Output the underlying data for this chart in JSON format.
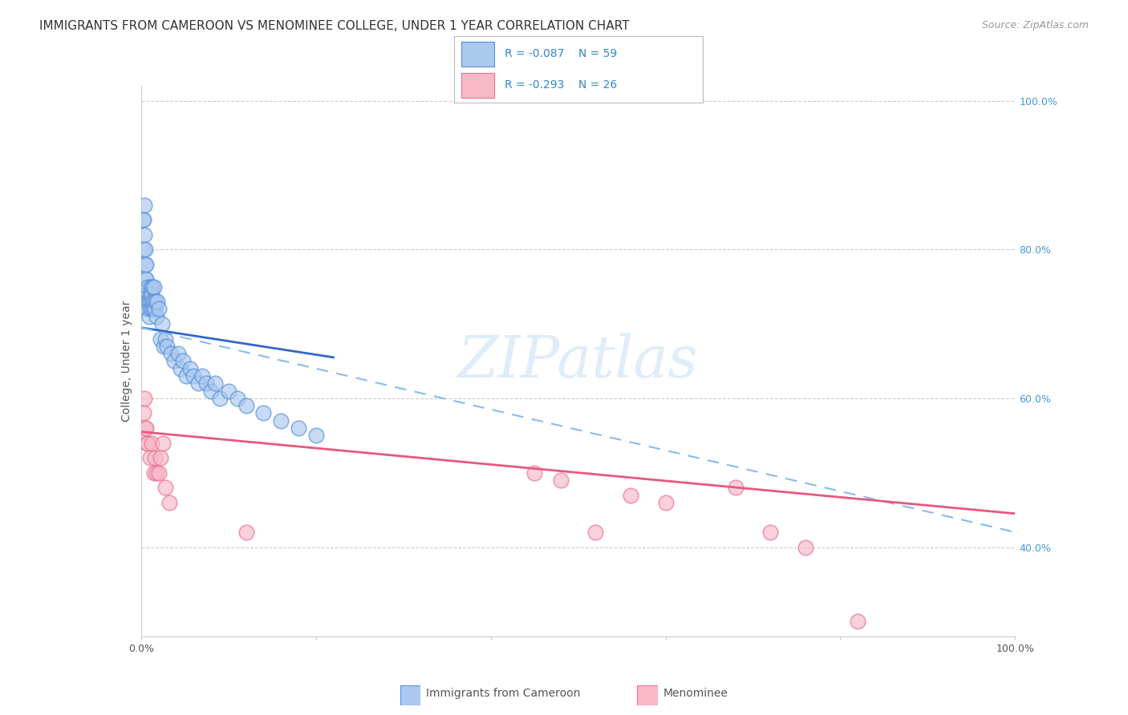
{
  "title": "IMMIGRANTS FROM CAMEROON VS MENOMINEE COLLEGE, UNDER 1 YEAR CORRELATION CHART",
  "source": "Source: ZipAtlas.com",
  "ylabel": "College, Under 1 year",
  "legend_label1": "Immigrants from Cameroon",
  "legend_label2": "Menominee",
  "R1": -0.087,
  "N1": 59,
  "R2": -0.293,
  "N2": 26,
  "blue_face_color": "#aac8f0",
  "blue_edge_color": "#5590d8",
  "pink_face_color": "#f8b8c8",
  "pink_edge_color": "#e87090",
  "blue_line_color": "#3366cc",
  "pink_line_color": "#e85880",
  "dashed_line_color": "#88bbee",
  "right_axis_color": "#4499dd",
  "legend_text_color": "#3388cc",
  "blue_x": [
    0.002,
    0.003,
    0.003,
    0.004,
    0.004,
    0.005,
    0.005,
    0.005,
    0.006,
    0.006,
    0.006,
    0.007,
    0.007,
    0.008,
    0.008,
    0.009,
    0.009,
    0.01,
    0.01,
    0.011,
    0.011,
    0.012,
    0.012,
    0.013,
    0.013,
    0.014,
    0.015,
    0.015,
    0.016,
    0.017,
    0.018,
    0.019,
    0.02,
    0.022,
    0.024,
    0.026,
    0.028,
    0.03,
    0.034,
    0.038,
    0.042,
    0.045,
    0.048,
    0.052,
    0.056,
    0.06,
    0.065,
    0.07,
    0.075,
    0.08,
    0.085,
    0.09,
    0.1,
    0.11,
    0.12,
    0.14,
    0.16,
    0.18,
    0.2
  ],
  "blue_y": [
    0.84,
    0.84,
    0.8,
    0.86,
    0.82,
    0.76,
    0.78,
    0.8,
    0.74,
    0.76,
    0.78,
    0.72,
    0.74,
    0.73,
    0.75,
    0.71,
    0.73,
    0.72,
    0.74,
    0.73,
    0.75,
    0.72,
    0.74,
    0.73,
    0.75,
    0.72,
    0.73,
    0.75,
    0.72,
    0.73,
    0.71,
    0.73,
    0.72,
    0.68,
    0.7,
    0.67,
    0.68,
    0.67,
    0.66,
    0.65,
    0.66,
    0.64,
    0.65,
    0.63,
    0.64,
    0.63,
    0.62,
    0.63,
    0.62,
    0.61,
    0.62,
    0.6,
    0.61,
    0.6,
    0.59,
    0.58,
    0.57,
    0.56,
    0.55
  ],
  "pink_x": [
    0.003,
    0.004,
    0.005,
    0.006,
    0.007,
    0.008,
    0.01,
    0.012,
    0.015,
    0.016,
    0.018,
    0.02,
    0.022,
    0.025,
    0.028,
    0.032,
    0.12,
    0.45,
    0.48,
    0.52,
    0.56,
    0.6,
    0.68,
    0.72,
    0.76,
    0.82
  ],
  "pink_y": [
    0.58,
    0.6,
    0.56,
    0.56,
    0.54,
    0.54,
    0.52,
    0.54,
    0.5,
    0.52,
    0.5,
    0.5,
    0.52,
    0.54,
    0.48,
    0.46,
    0.42,
    0.5,
    0.49,
    0.42,
    0.47,
    0.46,
    0.48,
    0.42,
    0.4,
    0.3
  ],
  "blue_line_x0": 0.0,
  "blue_line_x1": 0.22,
  "blue_line_y0": 0.695,
  "blue_line_y1": 0.655,
  "dash_line_x0": 0.0,
  "dash_line_x1": 1.0,
  "dash_line_y0": 0.695,
  "dash_line_y1": 0.42,
  "pink_line_x0": 0.0,
  "pink_line_x1": 1.0,
  "pink_line_y0": 0.555,
  "pink_line_y1": 0.445,
  "xlim": [
    0.0,
    1.0
  ],
  "ylim": [
    0.28,
    1.02
  ],
  "right_yticks": [
    0.4,
    0.6,
    0.8,
    1.0
  ],
  "right_yticklabels": [
    "40.0%",
    "60.0%",
    "80.0%",
    "100.0%"
  ],
  "title_fontsize": 11,
  "source_fontsize": 9,
  "label_fontsize": 10,
  "tick_fontsize": 9,
  "scatter_size": 180
}
